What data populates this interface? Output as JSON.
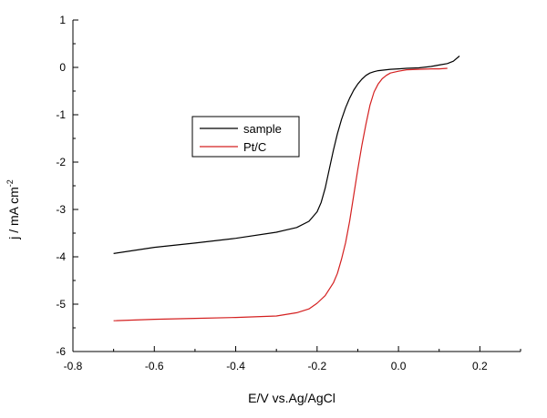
{
  "chart_data": {
    "type": "line",
    "xlabel": "E/V vs.Ag/AgCl",
    "ylabel_main": "j / mA cm",
    "ylabel_sup": "-2",
    "xlim": [
      -0.8,
      0.3
    ],
    "ylim": [
      -6,
      1
    ],
    "xticks": [
      "-0.8",
      "-0.6",
      "-0.4",
      "-0.2",
      "0.0",
      "0.2"
    ],
    "xtick_values": [
      -0.8,
      -0.6,
      -0.4,
      -0.2,
      0.0,
      0.2
    ],
    "yticks": [
      "1",
      "0",
      "-1",
      "-2",
      "-3",
      "-4",
      "-5",
      "-6"
    ],
    "ytick_values": [
      1,
      0,
      -1,
      -2,
      -3,
      -4,
      -5,
      -6
    ],
    "legend_position": "center-left",
    "series": [
      {
        "name": "sample",
        "color": "#000000",
        "x": [
          -0.7,
          -0.6,
          -0.5,
          -0.4,
          -0.3,
          -0.25,
          -0.22,
          -0.2,
          -0.19,
          -0.18,
          -0.17,
          -0.16,
          -0.15,
          -0.14,
          -0.13,
          -0.12,
          -0.11,
          -0.1,
          -0.09,
          -0.08,
          -0.07,
          -0.06,
          -0.05,
          -0.04,
          -0.02,
          0.0,
          0.02,
          0.05,
          0.08,
          0.1,
          0.12,
          0.135,
          0.15
        ],
        "y": [
          -3.93,
          -3.8,
          -3.71,
          -3.61,
          -3.48,
          -3.38,
          -3.25,
          -3.05,
          -2.85,
          -2.55,
          -2.15,
          -1.75,
          -1.4,
          -1.1,
          -0.85,
          -0.65,
          -0.48,
          -0.35,
          -0.25,
          -0.17,
          -0.12,
          -0.09,
          -0.07,
          -0.06,
          -0.04,
          -0.03,
          -0.02,
          -0.01,
          0.02,
          0.05,
          0.08,
          0.13,
          0.24
        ]
      },
      {
        "name": "Pt/C",
        "color": "#d42020",
        "x": [
          -0.7,
          -0.6,
          -0.5,
          -0.4,
          -0.3,
          -0.25,
          -0.22,
          -0.2,
          -0.18,
          -0.16,
          -0.15,
          -0.14,
          -0.13,
          -0.12,
          -0.11,
          -0.1,
          -0.09,
          -0.08,
          -0.07,
          -0.06,
          -0.05,
          -0.04,
          -0.03,
          -0.02,
          0.0,
          0.02,
          0.05,
          0.08,
          0.1,
          0.12
        ],
        "y": [
          -5.35,
          -5.32,
          -5.3,
          -5.28,
          -5.25,
          -5.18,
          -5.1,
          -4.98,
          -4.82,
          -4.55,
          -4.35,
          -4.05,
          -3.7,
          -3.25,
          -2.7,
          -2.15,
          -1.65,
          -1.2,
          -0.8,
          -0.52,
          -0.35,
          -0.24,
          -0.17,
          -0.12,
          -0.08,
          -0.05,
          -0.04,
          -0.03,
          -0.03,
          -0.02
        ]
      }
    ]
  }
}
